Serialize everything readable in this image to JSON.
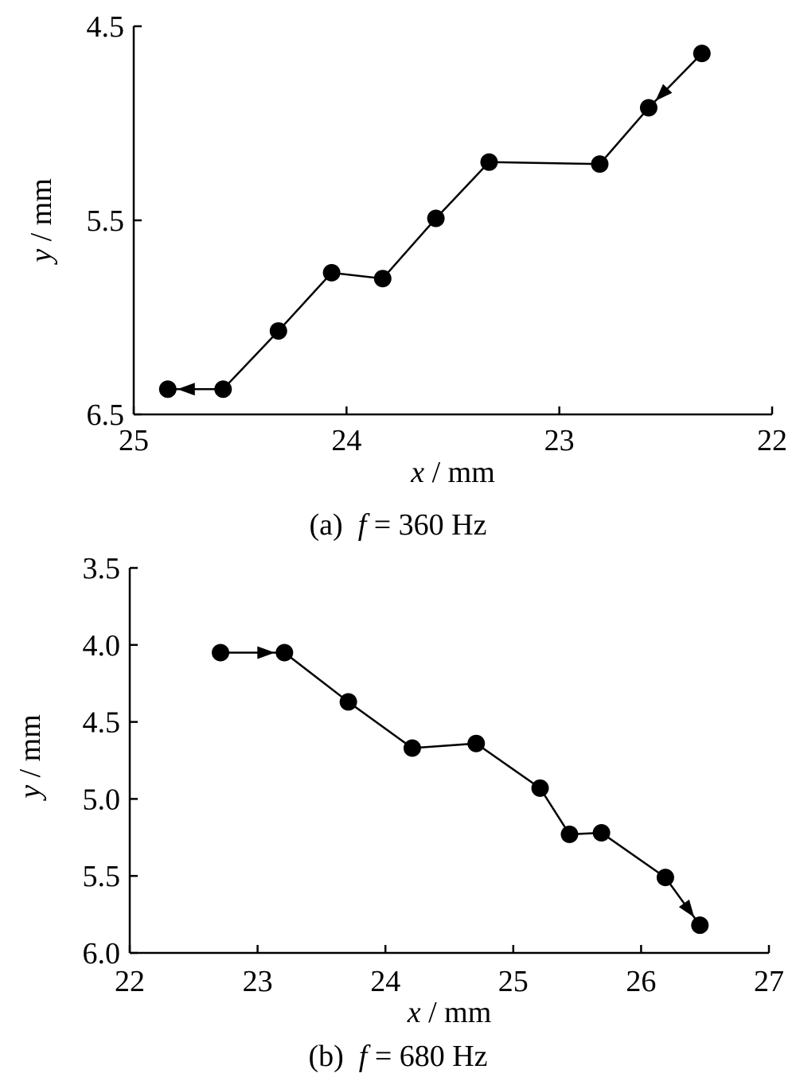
{
  "chart_data": [
    {
      "type": "line",
      "panel": "(a)",
      "caption_prefix": "(a)",
      "caption_var": "f",
      "caption_rest": "= 360 Hz",
      "xlabel_var": "x",
      "xlabel_unit": " / mm",
      "ylabel_var": "y",
      "ylabel_unit": " / mm",
      "xlim": [
        25,
        22
      ],
      "ylim": [
        6.5,
        4.5
      ],
      "x_reversed": true,
      "y_inverted": true,
      "x_ticks": [
        25,
        24,
        23,
        22
      ],
      "x_tick_labels": [
        "25",
        "24",
        "23",
        "22"
      ],
      "y_ticks": [
        4.5,
        5.5,
        6.5
      ],
      "y_tick_labels": [
        "4.5",
        "5.5",
        "6.5"
      ],
      "grid": false,
      "series": [
        {
          "marker": "filled-circle",
          "color": "#000000",
          "points": [
            {
              "x": 22.33,
              "y": 4.64
            },
            {
              "x": 22.58,
              "y": 4.92
            },
            {
              "x": 22.81,
              "y": 5.21
            },
            {
              "x": 23.33,
              "y": 5.2
            },
            {
              "x": 23.58,
              "y": 5.49
            },
            {
              "x": 23.83,
              "y": 5.8
            },
            {
              "x": 24.07,
              "y": 5.77
            },
            {
              "x": 24.32,
              "y": 6.07
            },
            {
              "x": 24.58,
              "y": 6.37
            },
            {
              "x": 24.84,
              "y": 6.37
            }
          ],
          "arrows": [
            {
              "from_index": 0,
              "to_index": 1
            },
            {
              "from_index": 8,
              "to_index": 9
            }
          ]
        }
      ]
    },
    {
      "type": "line",
      "panel": "(b)",
      "caption_prefix": "(b)",
      "caption_var": "f",
      "caption_rest": "= 680 Hz",
      "xlabel_var": "x",
      "xlabel_unit": " / mm",
      "ylabel_var": "y",
      "ylabel_unit": " / mm",
      "xlim": [
        22,
        27
      ],
      "ylim": [
        6.0,
        3.5
      ],
      "x_reversed": false,
      "y_inverted": true,
      "x_ticks": [
        22,
        23,
        24,
        25,
        26,
        27
      ],
      "x_tick_labels": [
        "22",
        "23",
        "24",
        "25",
        "26",
        "27"
      ],
      "y_ticks": [
        3.5,
        4.0,
        4.5,
        5.0,
        5.5,
        6.0
      ],
      "y_tick_labels": [
        "3.5",
        "4.0",
        "4.5",
        "5.0",
        "5.5",
        "6.0"
      ],
      "grid": false,
      "series": [
        {
          "marker": "filled-circle",
          "color": "#000000",
          "points": [
            {
              "x": 22.71,
              "y": 4.05
            },
            {
              "x": 23.21,
              "y": 4.05
            },
            {
              "x": 23.71,
              "y": 4.37
            },
            {
              "x": 24.21,
              "y": 4.67
            },
            {
              "x": 24.71,
              "y": 4.64
            },
            {
              "x": 25.21,
              "y": 4.93
            },
            {
              "x": 25.44,
              "y": 5.23
            },
            {
              "x": 25.69,
              "y": 5.22
            },
            {
              "x": 26.19,
              "y": 5.51
            },
            {
              "x": 26.46,
              "y": 5.82
            }
          ],
          "arrows": [
            {
              "from_index": 0,
              "to_index": 1
            },
            {
              "from_index": 8,
              "to_index": 9
            }
          ]
        }
      ]
    }
  ]
}
